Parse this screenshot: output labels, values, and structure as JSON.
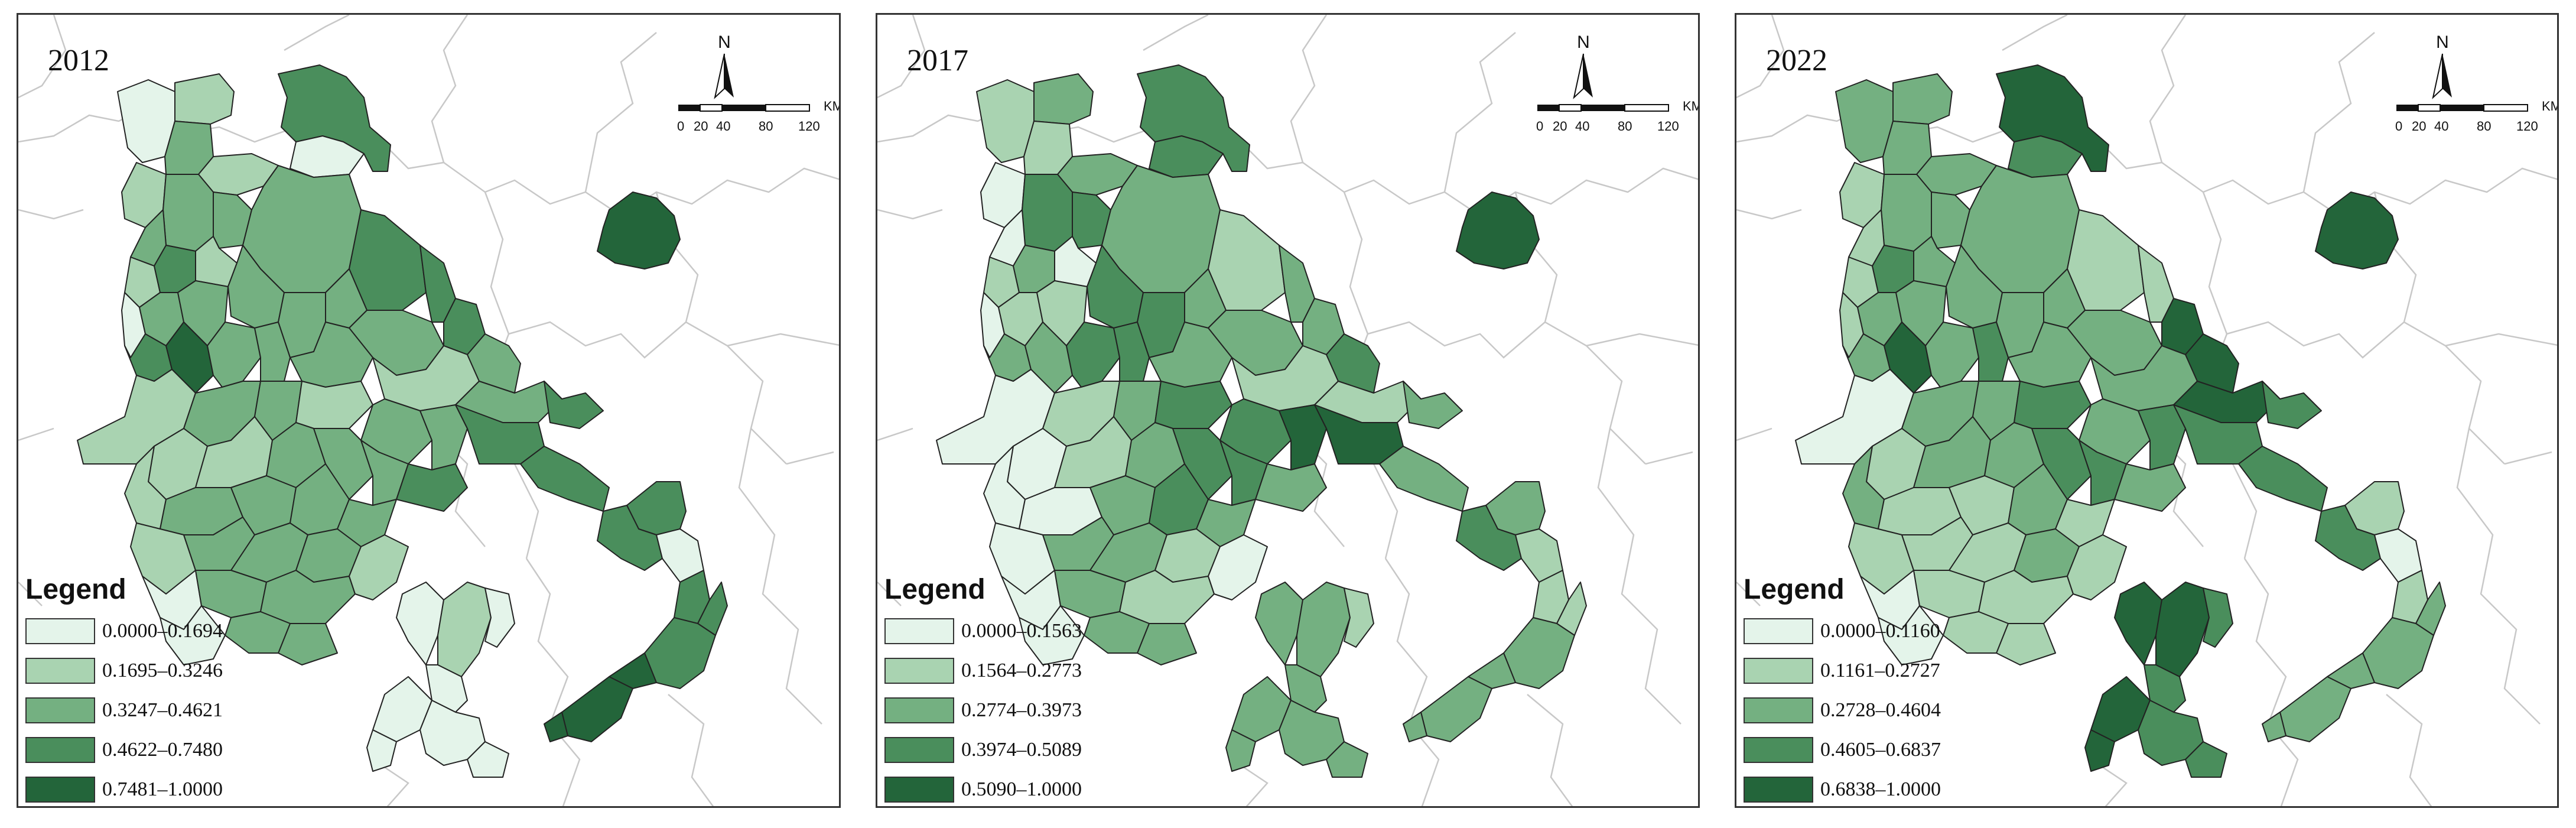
{
  "colors": {
    "c1": "#e4f4ea",
    "c2": "#a9d3b1",
    "c3": "#74b081",
    "c4": "#4a8e5c",
    "c5": "#23653a",
    "stroke": "#222222",
    "bg_stroke": "#c8c8c8",
    "panel_border": "#333333"
  },
  "compass": {
    "letter": "N"
  },
  "scale": {
    "ticks": [
      "0",
      "20",
      "40",
      "80",
      "120"
    ],
    "unit": "KM"
  },
  "legend_title": "Legend",
  "panels": [
    {
      "year": "2012",
      "legend": [
        {
          "label": "0.0000–0.1694",
          "color": "#e4f4ea"
        },
        {
          "label": "0.1695–0.3246",
          "color": "#a9d3b1"
        },
        {
          "label": "0.3247–0.4621",
          "color": "#74b081"
        },
        {
          "label": "0.4622–0.7480",
          "color": "#4a8e5c"
        },
        {
          "label": "0.7481–1.0000",
          "color": "#23653a"
        }
      ]
    },
    {
      "year": "2017",
      "legend": [
        {
          "label": "0.0000–0.1563",
          "color": "#e4f4ea"
        },
        {
          "label": "0.1564–0.2773",
          "color": "#a9d3b1"
        },
        {
          "label": "0.2774–0.3973",
          "color": "#74b081"
        },
        {
          "label": "0.3974–0.5089",
          "color": "#4a8e5c"
        },
        {
          "label": "0.5090–1.0000",
          "color": "#23653a"
        }
      ]
    },
    {
      "year": "2022",
      "legend": [
        {
          "label": "0.0000–0.1160",
          "color": "#e4f4ea"
        },
        {
          "label": "0.1161–0.2727",
          "color": "#a9d3b1"
        },
        {
          "label": "0.2728–0.4604",
          "color": "#74b081"
        },
        {
          "label": "0.4605–0.6837",
          "color": "#4a8e5c"
        },
        {
          "label": "0.6838–1.0000",
          "color": "#23653a"
        }
      ]
    }
  ]
}
